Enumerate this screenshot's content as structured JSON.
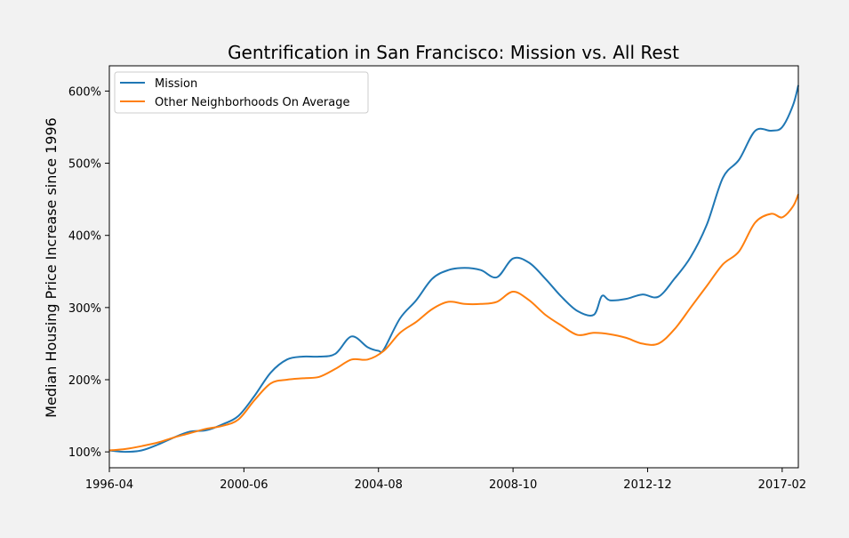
{
  "chart_data": {
    "type": "line",
    "title": "Gentrification in San Francisco: Mission vs. All Rest",
    "xlabel": "",
    "ylabel": "Median Housing Price Increase since 1996",
    "x_tick_labels": [
      "1996-04",
      "2000-06",
      "2004-08",
      "2008-10",
      "2012-12",
      "2017-02"
    ],
    "y_tick_labels": [
      "100%",
      "200%",
      "300%",
      "400%",
      "500%",
      "600%"
    ],
    "y_ticks": [
      100,
      200,
      300,
      400,
      500,
      600
    ],
    "xlim": [
      "1996-04",
      "2017-08"
    ],
    "ylim": [
      78,
      635
    ],
    "grid": false,
    "legend_position": "upper-left",
    "series": [
      {
        "name": "Mission",
        "color": "#1f77b4",
        "points": [
          [
            "1996-04",
            102
          ],
          [
            "1996-10",
            100
          ],
          [
            "1997-04",
            102
          ],
          [
            "1997-10",
            110
          ],
          [
            "1998-04",
            120
          ],
          [
            "1998-10",
            128
          ],
          [
            "1999-04",
            130
          ],
          [
            "1999-10",
            138
          ],
          [
            "2000-04",
            150
          ],
          [
            "2000-10",
            178
          ],
          [
            "2001-04",
            210
          ],
          [
            "2001-10",
            228
          ],
          [
            "2002-04",
            232
          ],
          [
            "2002-10",
            232
          ],
          [
            "2003-04",
            236
          ],
          [
            "2003-10",
            260
          ],
          [
            "2004-04",
            245
          ],
          [
            "2004-08",
            240
          ],
          [
            "2004-10",
            242
          ],
          [
            "2005-04",
            285
          ],
          [
            "2005-10",
            310
          ],
          [
            "2006-04",
            340
          ],
          [
            "2006-10",
            352
          ],
          [
            "2007-04",
            355
          ],
          [
            "2007-10",
            352
          ],
          [
            "2008-04",
            342
          ],
          [
            "2008-10",
            368
          ],
          [
            "2009-04",
            362
          ],
          [
            "2009-10",
            340
          ],
          [
            "2010-04",
            315
          ],
          [
            "2010-10",
            295
          ],
          [
            "2011-04",
            290
          ],
          [
            "2011-07",
            316
          ],
          [
            "2011-10",
            310
          ],
          [
            "2012-04",
            312
          ],
          [
            "2012-10",
            318
          ],
          [
            "2013-04",
            315
          ],
          [
            "2013-10",
            340
          ],
          [
            "2014-04",
            370
          ],
          [
            "2014-10",
            415
          ],
          [
            "2015-04",
            480
          ],
          [
            "2015-10",
            505
          ],
          [
            "2016-04",
            545
          ],
          [
            "2016-10",
            545
          ],
          [
            "2017-02",
            550
          ],
          [
            "2017-06",
            580
          ],
          [
            "2017-08",
            608
          ]
        ]
      },
      {
        "name": "Other Neighborhoods On Average",
        "color": "#ff7f0e",
        "points": [
          [
            "1996-04",
            102
          ],
          [
            "1996-10",
            104
          ],
          [
            "1997-04",
            108
          ],
          [
            "1997-10",
            113
          ],
          [
            "1998-04",
            120
          ],
          [
            "1998-10",
            126
          ],
          [
            "1999-04",
            132
          ],
          [
            "1999-10",
            136
          ],
          [
            "2000-04",
            145
          ],
          [
            "2000-10",
            172
          ],
          [
            "2001-04",
            195
          ],
          [
            "2001-10",
            200
          ],
          [
            "2002-04",
            202
          ],
          [
            "2002-10",
            204
          ],
          [
            "2003-04",
            215
          ],
          [
            "2003-10",
            228
          ],
          [
            "2004-04",
            228
          ],
          [
            "2004-10",
            240
          ],
          [
            "2005-04",
            265
          ],
          [
            "2005-10",
            280
          ],
          [
            "2006-04",
            298
          ],
          [
            "2006-10",
            308
          ],
          [
            "2007-04",
            305
          ],
          [
            "2007-10",
            305
          ],
          [
            "2008-04",
            308
          ],
          [
            "2008-10",
            322
          ],
          [
            "2009-04",
            310
          ],
          [
            "2009-10",
            290
          ],
          [
            "2010-04",
            275
          ],
          [
            "2010-10",
            262
          ],
          [
            "2011-04",
            265
          ],
          [
            "2011-10",
            263
          ],
          [
            "2012-04",
            258
          ],
          [
            "2012-10",
            250
          ],
          [
            "2013-04",
            250
          ],
          [
            "2013-10",
            270
          ],
          [
            "2014-04",
            300
          ],
          [
            "2014-10",
            330
          ],
          [
            "2015-04",
            360
          ],
          [
            "2015-10",
            378
          ],
          [
            "2016-04",
            418
          ],
          [
            "2016-10",
            430
          ],
          [
            "2017-02",
            425
          ],
          [
            "2017-06",
            440
          ],
          [
            "2017-08",
            457
          ]
        ]
      }
    ]
  }
}
